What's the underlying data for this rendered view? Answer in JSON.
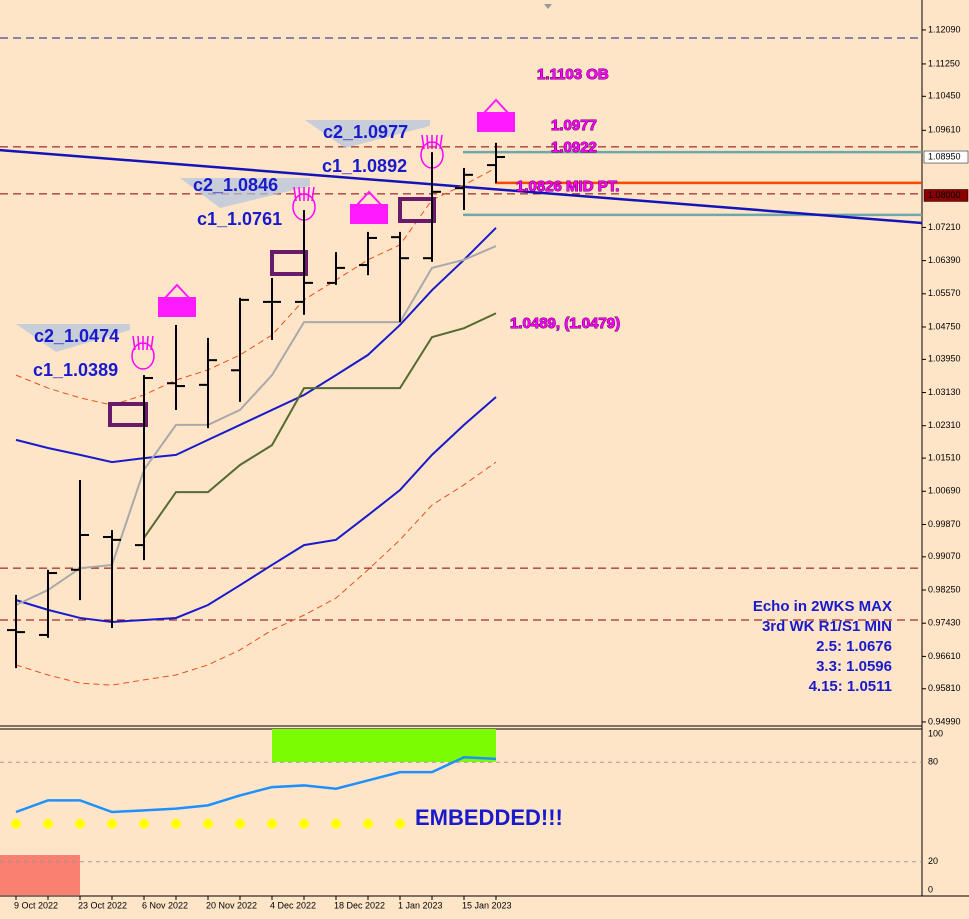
{
  "chart_data": {
    "type": "ohlc",
    "categories": [
      "9 Oct 2022",
      null,
      "23 Oct 2022",
      null,
      "6 Nov 2022",
      null,
      "20 Nov 2022",
      null,
      "4 Dec 2022",
      null,
      "18 Dec 2022",
      null,
      "1 Jan 2023",
      null,
      "15 Jan 2023",
      null
    ],
    "open": [
      0.9726,
      0.9714,
      0.9875,
      0.9956,
      0.9936,
      1.0336,
      1.0332,
      1.0368,
      1.0537,
      1.0537,
      1.0584,
      1.0628,
      1.0697,
      1.0645,
      1.0818,
      1.0875
    ],
    "high": [
      0.9813,
      0.9875,
      1.0097,
      0.9973,
      1.0356,
      1.048,
      1.0448,
      1.0547,
      1.0596,
      1.0764,
      1.066,
      1.071,
      1.071,
      1.0907,
      1.0868,
      1.093
    ],
    "low": [
      0.9632,
      0.9707,
      0.98,
      0.9731,
      0.9899,
      1.027,
      1.0225,
      1.029,
      1.0443,
      1.0505,
      1.0579,
      1.0603,
      1.0487,
      1.0636,
      1.0764,
      1.0831
    ],
    "close": [
      0.9721,
      0.9867,
      0.9961,
      0.9949,
      1.0349,
      1.0329,
      1.0393,
      1.0542,
      1.0537,
      1.0584,
      1.0621,
      1.0695,
      1.0645,
      1.0809,
      1.0851,
      1.0895
    ],
    "bar_color": "#000000",
    "ylim": [
      0.9489,
      1.1283
    ],
    "yticks": [
      {
        "value": 1.1209,
        "label": "1.12090"
      },
      {
        "value": 1.1125,
        "label": "1.11250"
      },
      {
        "value": 1.1045,
        "label": "1.10450"
      },
      {
        "value": 1.0961,
        "label": "1.09610"
      },
      {
        "value": 1.0721,
        "label": "1.07210"
      },
      {
        "value": 1.0639,
        "label": "1.06390"
      },
      {
        "value": 1.0557,
        "label": "1.05570"
      },
      {
        "value": 1.0475,
        "label": "1.04750"
      },
      {
        "value": 1.0395,
        "label": "1.03950"
      },
      {
        "value": 1.0313,
        "label": "1.03130"
      },
      {
        "value": 1.0231,
        "label": "1.02310"
      },
      {
        "value": 1.0151,
        "label": "1.01510"
      },
      {
        "value": 1.0069,
        "label": "1.00690"
      },
      {
        "value": 0.9987,
        "label": "0.99870"
      },
      {
        "value": 0.9907,
        "label": "0.99070"
      },
      {
        "value": 0.9825,
        "label": "0.98250"
      },
      {
        "value": 0.9743,
        "label": "0.97430"
      },
      {
        "value": 0.9661,
        "label": "0.96610"
      },
      {
        "value": 0.9581,
        "label": "0.95810"
      },
      {
        "value": 0.9499,
        "label": "0.94990"
      }
    ],
    "series": [
      {
        "color": "#1a1acd",
        "style": "solid",
        "values": [
          1.0196,
          1.0176,
          1.0159,
          1.0141,
          1.0151,
          1.0159,
          1.0196,
          1.0233,
          1.027,
          1.0307,
          1.0356,
          1.0406,
          1.048,
          1.0566,
          1.0641,
          1.072
        ]
      },
      {
        "color": "#1a1acd",
        "style": "solid",
        "values": [
          0.98,
          0.9776,
          0.9756,
          0.9746,
          0.9751,
          0.9756,
          0.9788,
          0.9837,
          0.9887,
          0.9936,
          0.9949,
          1.001,
          1.0072,
          1.0159,
          1.0233,
          1.0302
        ]
      },
      {
        "color": "#a9a9a9",
        "style": "solid",
        "values": [
          0.9788,
          0.9825,
          0.9879,
          0.9887,
          1.0122,
          1.0233,
          1.0233,
          1.027,
          1.0356,
          1.0487,
          1.0487,
          1.0487,
          1.0487,
          1.0621,
          1.0641,
          1.0675
        ]
      },
      {
        "color": "#556b2f",
        "style": "solid",
        "values": [
          null,
          null,
          null,
          null,
          0.9954,
          1.0067,
          1.0067,
          1.0134,
          1.0183,
          1.0324,
          1.0324,
          1.0324,
          1.0324,
          1.045,
          1.0472,
          1.0509
        ]
      },
      {
        "color": "#e8501a",
        "style": "dashed",
        "values": [
          1.0356,
          1.0324,
          1.03,
          1.0282,
          1.0307,
          1.0344,
          1.0369,
          1.0406,
          1.0455,
          1.0542,
          1.0591,
          1.0641,
          1.0678,
          1.0789,
          1.0826,
          1.0868
        ]
      },
      {
        "color": "#e8501a",
        "style": "dashed",
        "values": [
          0.964,
          0.9615,
          0.9595,
          0.959,
          0.9603,
          0.9615,
          0.964,
          0.9677,
          0.9726,
          0.9763,
          0.9805,
          0.9875,
          0.9949,
          1.0035,
          1.0085,
          1.0141
        ]
      }
    ],
    "levels": [
      {
        "value": 1.1189,
        "color": "#1c1c8c"
      },
      {
        "value": 1.092,
        "color": "#8b0000"
      },
      {
        "value": 1.0804,
        "color": "#8b0000"
      },
      {
        "value": 0.9879,
        "color": "#8b0000"
      },
      {
        "value": 0.9751,
        "color": "#8b0000"
      }
    ],
    "segments": [
      {
        "value": 1.0907,
        "color": "#6fa8a8",
        "start": 14
      },
      {
        "value": 1.0831,
        "color": "#ff4500",
        "start": 15
      },
      {
        "value": 1.0752,
        "color": "#6fa8a8",
        "start": 14
      }
    ],
    "trendline": {
      "values": [
        1.0912,
        1.0732
      ],
      "color": "#1414b8"
    },
    "price_tags": [
      {
        "value": 1.0895,
        "label": "1.08950",
        "color": "#ffffff",
        "text_color": "#000000"
      },
      {
        "value": 1.08,
        "label": "1.08000",
        "color": "#8b0000",
        "text_color": "#ffffff"
      }
    ],
    "annotations": [
      {
        "text": "1.1103 OB",
        "color": "#ff00ff"
      },
      {
        "text": "1.0977",
        "color": "#ff00ff"
      },
      {
        "text": "1.0922",
        "color": "#ff00ff"
      },
      {
        "text": "1.0826 MID PT.",
        "color": "#ff00ff"
      },
      {
        "text": "1.0489, (1.0479)",
        "color": "#ff00ff"
      },
      {
        "text": "c2_1.0977",
        "color": "#1a1acd"
      },
      {
        "text": "c1_1.0892",
        "color": "#1a1acd"
      },
      {
        "text": "c2_1.0846",
        "color": "#1a1acd"
      },
      {
        "text": "c1_1.0761",
        "color": "#1a1acd"
      },
      {
        "text": "c2_1.0474",
        "color": "#1a1acd"
      },
      {
        "text": "c1_1.0389",
        "color": "#1a1acd"
      },
      {
        "text": "Echo in 2WKS MAX",
        "color": "#1a1acd"
      },
      {
        "text": "3rd WK R1/S1 MIN",
        "color": "#1a1acd"
      },
      {
        "text": "2.5: 1.0676",
        "color": "#1a1acd"
      },
      {
        "text": "3.3: 1.0596",
        "color": "#1a1acd"
      },
      {
        "text": "4.15: 1.0511",
        "color": "#1a1acd"
      },
      {
        "text": "EMBEDDED!!!",
        "color": "#1a1acd"
      }
    ],
    "oscillator": {
      "ylim": [
        0,
        100
      ],
      "yticks": [
        0,
        20,
        80,
        100
      ],
      "color": "#1e90ff",
      "values": [
        50,
        57,
        57,
        50,
        51,
        52,
        54,
        60,
        65,
        66,
        64,
        69,
        74,
        74,
        83,
        82
      ],
      "dots": [
        43,
        43,
        43,
        43,
        43,
        43,
        43,
        43,
        43,
        43,
        43,
        43,
        43,
        null,
        null,
        null
      ],
      "dot_color": "#ffff00"
    }
  }
}
